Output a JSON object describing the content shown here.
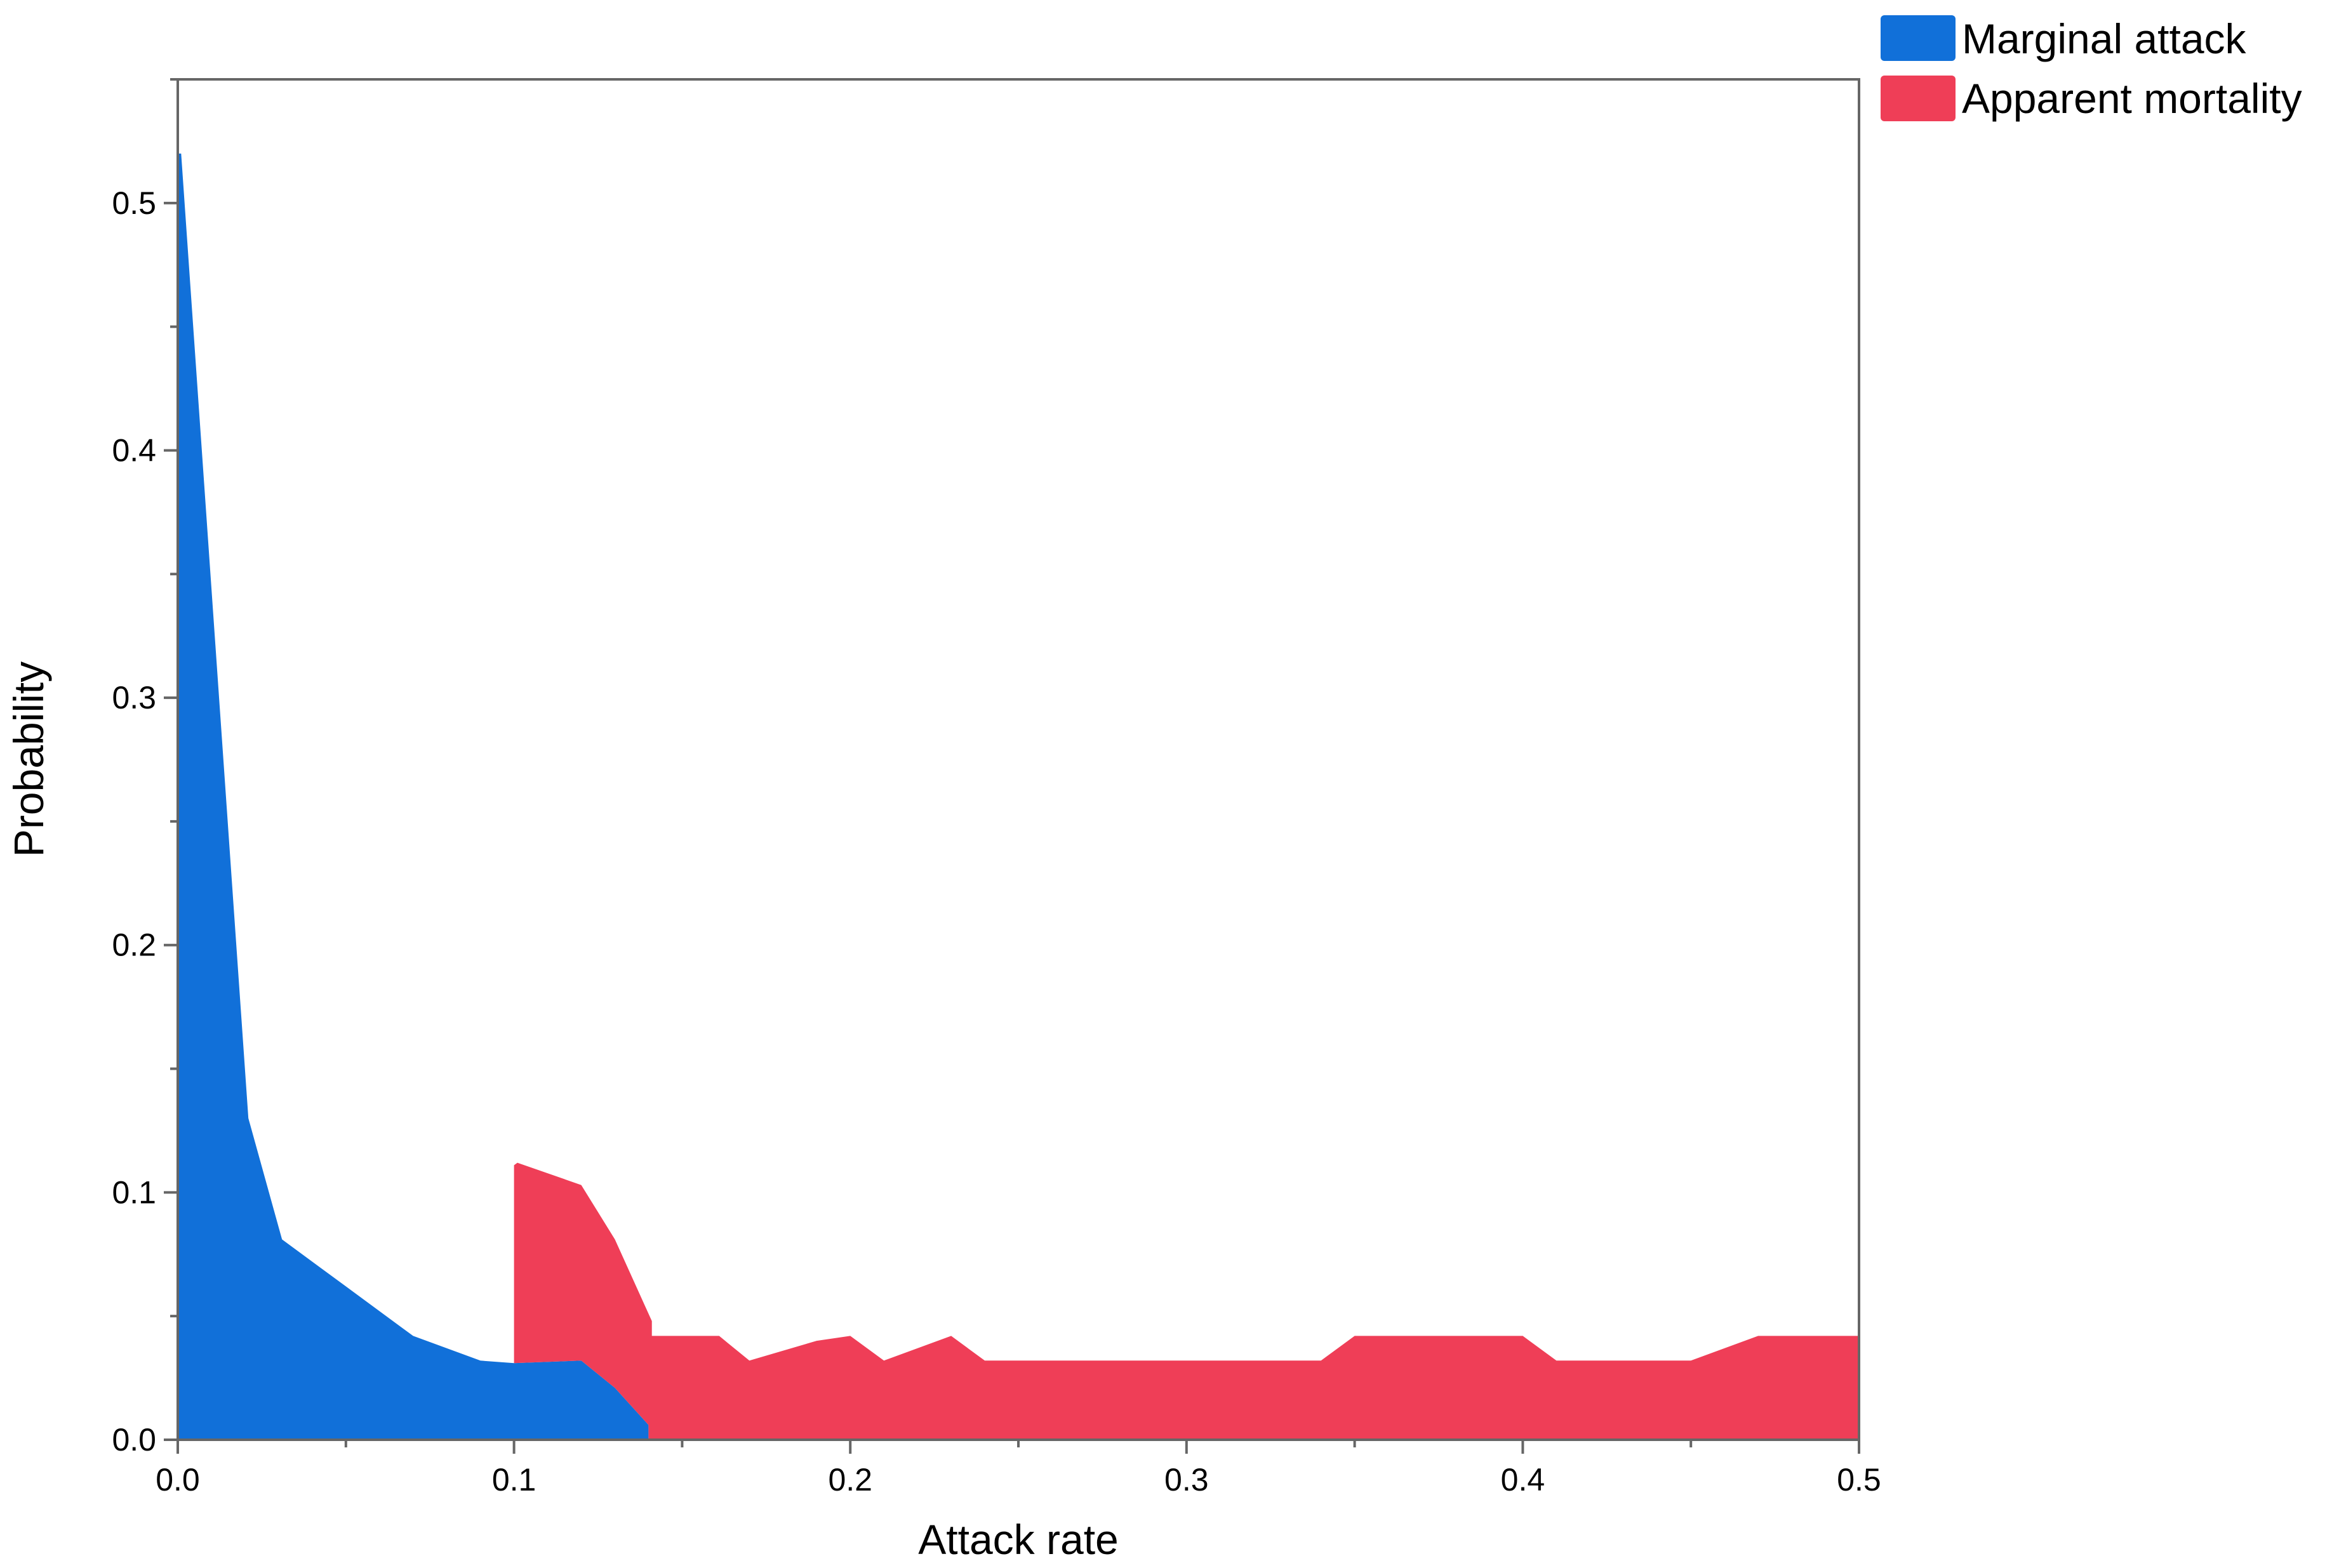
{
  "chart_data": {
    "type": "area",
    "xlabel": "Attack rate",
    "ylabel": "Probability",
    "xlim": [
      0,
      0.5
    ],
    "ylim": [
      0,
      0.55
    ],
    "x_ticks": [
      "0.0",
      "0.1",
      "0.2",
      "0.3",
      "0.4",
      "0.5"
    ],
    "y_ticks": [
      "0.0",
      "0.1",
      "0.2",
      "0.3",
      "0.4",
      "0.5"
    ],
    "grid": false,
    "legend_position": "top-right outside",
    "series": [
      {
        "name": "Marginal attack",
        "color": "#1170d9",
        "points": [
          [
            0.0,
            0.52
          ],
          [
            0.001,
            0.52
          ],
          [
            0.021,
            0.13
          ],
          [
            0.031,
            0.081
          ],
          [
            0.05,
            0.062
          ],
          [
            0.07,
            0.042
          ],
          [
            0.09,
            0.032
          ],
          [
            0.1,
            0.031
          ],
          [
            0.12,
            0.032
          ],
          [
            0.13,
            0.021
          ],
          [
            0.14,
            0.006
          ],
          [
            0.14,
            0.0
          ],
          [
            0.0,
            0.0
          ]
        ]
      },
      {
        "name": "Apparent mortality",
        "color": "#ef3e57",
        "points": [
          [
            0.1,
            0.111
          ],
          [
            0.101,
            0.112
          ],
          [
            0.12,
            0.103
          ],
          [
            0.13,
            0.081
          ],
          [
            0.141,
            0.048
          ],
          [
            0.141,
            0.042
          ],
          [
            0.161,
            0.042
          ],
          [
            0.17,
            0.032
          ],
          [
            0.19,
            0.04
          ],
          [
            0.2,
            0.042
          ],
          [
            0.21,
            0.032
          ],
          [
            0.23,
            0.042
          ],
          [
            0.24,
            0.032
          ],
          [
            0.34,
            0.032
          ],
          [
            0.35,
            0.042
          ],
          [
            0.4,
            0.042
          ],
          [
            0.41,
            0.032
          ],
          [
            0.45,
            0.032
          ],
          [
            0.47,
            0.042
          ],
          [
            0.5,
            0.042
          ],
          [
            0.5,
            0.0
          ],
          [
            0.14,
            0.0
          ],
          [
            0.14,
            0.006
          ],
          [
            0.13,
            0.021
          ],
          [
            0.12,
            0.032
          ],
          [
            0.1,
            0.031
          ]
        ]
      }
    ]
  }
}
